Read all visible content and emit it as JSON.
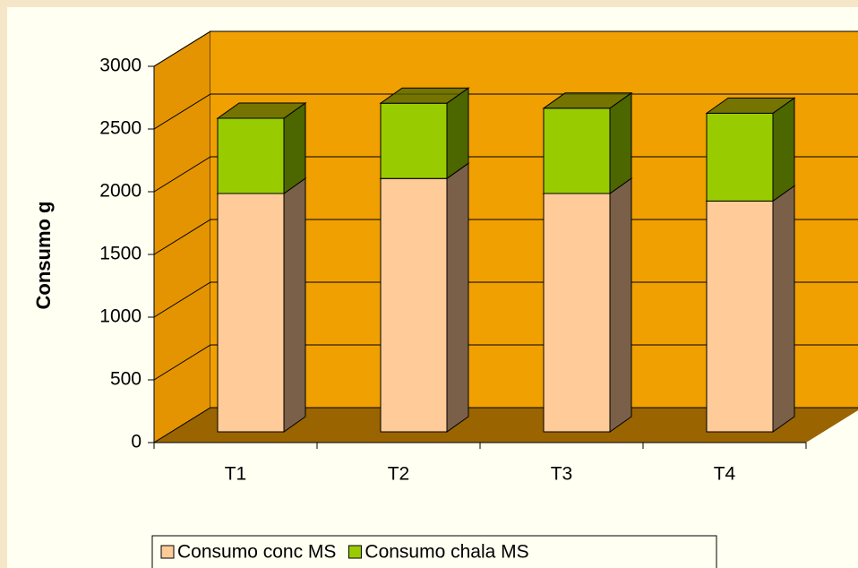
{
  "chart_data": {
    "type": "bar",
    "stacked": true,
    "y_label": "Consumo   g",
    "categories": [
      "T1",
      "T2",
      "T3",
      "T4"
    ],
    "series": [
      {
        "name": "Consumo conc MS",
        "color": "#ffcc99",
        "side_color": "#7a6048",
        "values": [
          1900,
          2020,
          1900,
          1840
        ]
      },
      {
        "name": "Consumo chala MS",
        "color": "#99cc00",
        "side_color": "#4c6600",
        "values": [
          600,
          600,
          680,
          700
        ]
      }
    ],
    "ylim": [
      0,
      3000
    ],
    "yticks": [
      0,
      500,
      1000,
      1500,
      2000,
      2500,
      3000
    ],
    "grid": true
  }
}
